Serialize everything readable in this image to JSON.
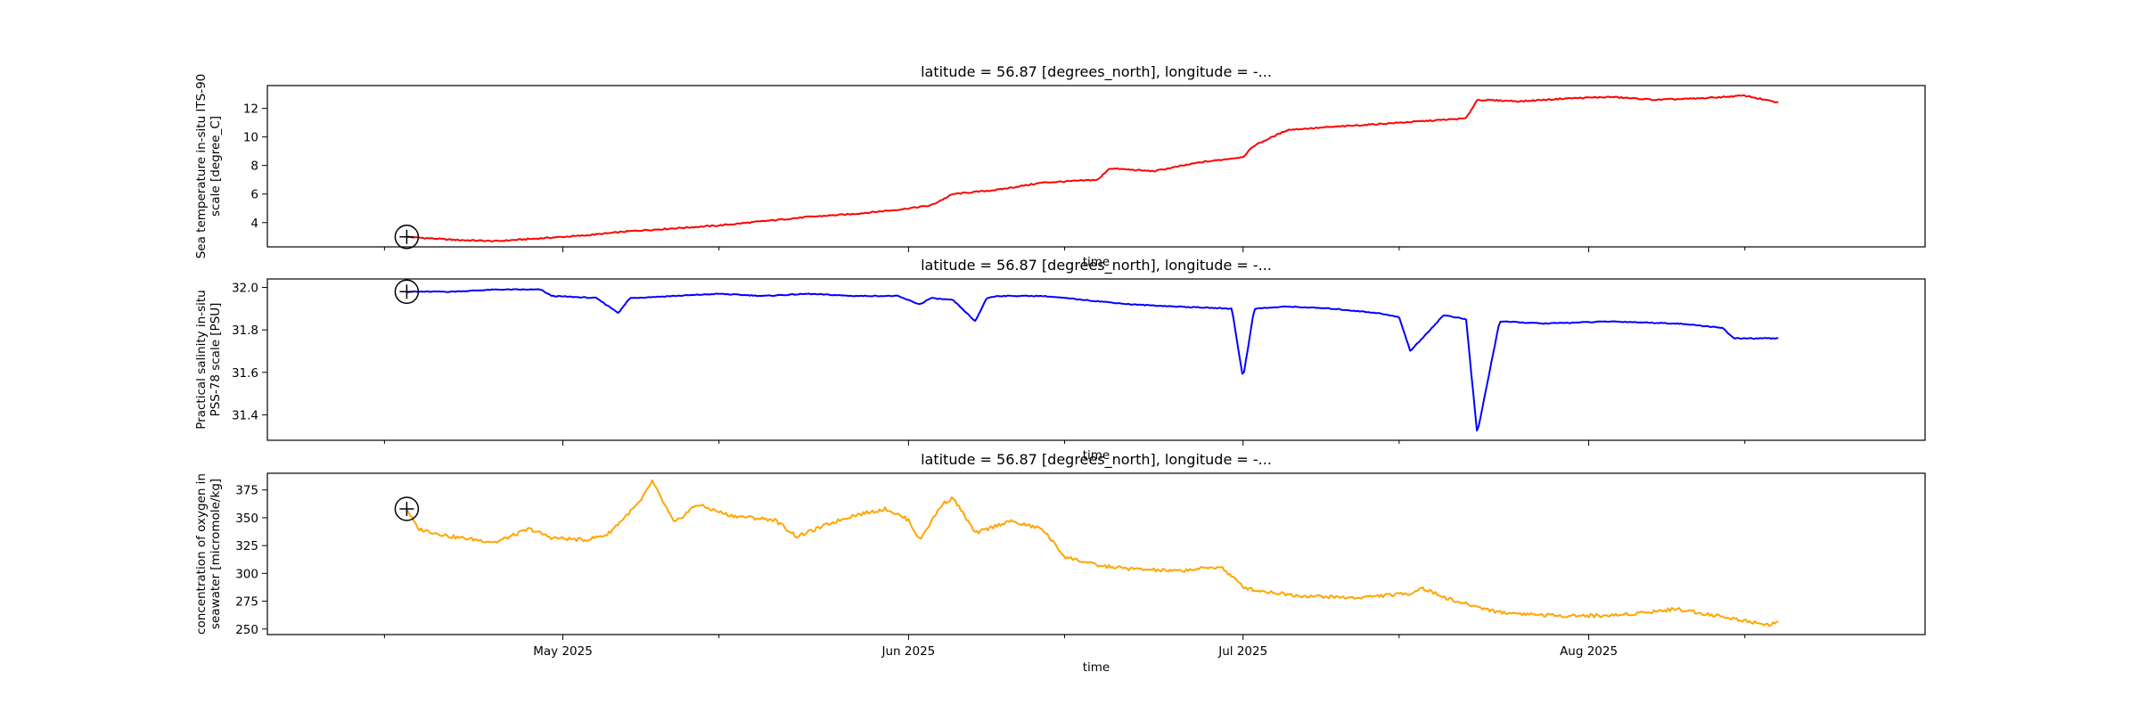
{
  "chart_data": [
    {
      "type": "line",
      "title": "latitude = 56.87 [degrees_north], longitude = -...",
      "ylabel": [
        "Sea temperature in-situ ITS-90",
        "scale [degree_C]"
      ],
      "xlabel": "time",
      "color": "#ff0000",
      "ylim": [
        2.3,
        13.6
      ],
      "yticks": [
        4,
        6,
        8,
        10,
        12
      ],
      "xticklabels": [],
      "series": [
        {
          "x": [
            "2025-04-17",
            "2025-04-21",
            "2025-04-25",
            "2025-04-29",
            "2025-05-03",
            "2025-05-07",
            "2025-05-11",
            "2025-05-15",
            "2025-05-19",
            "2025-05-23",
            "2025-05-27",
            "2025-05-31",
            "2025-06-03",
            "2025-06-05",
            "2025-06-09",
            "2025-06-13",
            "2025-06-18",
            "2025-06-19",
            "2025-06-23",
            "2025-06-27",
            "2025-07-01",
            "2025-07-02",
            "2025-07-05",
            "2025-07-09",
            "2025-07-13",
            "2025-07-17",
            "2025-07-21",
            "2025-07-22",
            "2025-07-26",
            "2025-07-30",
            "2025-08-03",
            "2025-08-07",
            "2025-08-11",
            "2025-08-15",
            "2025-08-18"
          ],
          "y": [
            3.0,
            2.8,
            2.7,
            2.9,
            3.1,
            3.4,
            3.6,
            3.8,
            4.1,
            4.4,
            4.6,
            4.9,
            5.2,
            6.0,
            6.3,
            6.8,
            7.0,
            7.8,
            7.6,
            8.2,
            8.6,
            9.4,
            10.5,
            10.7,
            10.9,
            11.1,
            11.3,
            12.6,
            12.5,
            12.7,
            12.8,
            12.6,
            12.7,
            12.9,
            12.4
          ]
        }
      ]
    },
    {
      "type": "line",
      "title": "latitude = 56.87 [degrees_north], longitude = -...",
      "ylabel": [
        "Practical salinity in-situ",
        "PSS-78 scale [PSU]"
      ],
      "xlabel": "time",
      "color": "#0000ff",
      "ylim": [
        31.28,
        32.04
      ],
      "yticks": [
        31.4,
        31.6,
        31.8,
        32.0
      ],
      "xticklabels": [],
      "series": [
        {
          "x": [
            "2025-04-17",
            "2025-04-21",
            "2025-04-25",
            "2025-04-29",
            "2025-04-30",
            "2025-05-04",
            "2025-05-06",
            "2025-05-07",
            "2025-05-11",
            "2025-05-15",
            "2025-05-19",
            "2025-05-23",
            "2025-05-27",
            "2025-05-31",
            "2025-06-02",
            "2025-06-03",
            "2025-06-05",
            "2025-06-07",
            "2025-06-08",
            "2025-06-09",
            "2025-06-13",
            "2025-06-17",
            "2025-06-21",
            "2025-06-25",
            "2025-06-30",
            "2025-07-01",
            "2025-07-02",
            "2025-07-05",
            "2025-07-09",
            "2025-07-13",
            "2025-07-15",
            "2025-07-16",
            "2025-07-19",
            "2025-07-21",
            "2025-07-22",
            "2025-07-24",
            "2025-07-28",
            "2025-08-03",
            "2025-08-09",
            "2025-08-13",
            "2025-08-14",
            "2025-08-18"
          ],
          "y": [
            31.98,
            31.98,
            31.99,
            31.99,
            31.96,
            31.95,
            31.88,
            31.95,
            31.96,
            31.97,
            31.96,
            31.97,
            31.96,
            31.96,
            31.92,
            31.95,
            31.94,
            31.84,
            31.95,
            31.96,
            31.96,
            31.94,
            31.92,
            31.91,
            31.9,
            31.57,
            31.9,
            31.91,
            31.9,
            31.88,
            31.86,
            31.7,
            31.87,
            31.85,
            31.31,
            31.84,
            31.83,
            31.84,
            31.83,
            31.81,
            31.76,
            31.76
          ]
        }
      ]
    },
    {
      "type": "line",
      "title": "latitude = 56.87 [degrees_north], longitude = -...",
      "ylabel": [
        "concentration of oxygen in",
        "seawater [micromole/kg]"
      ],
      "xlabel": "time",
      "color": "#ffa500",
      "ylim": [
        245,
        390
      ],
      "yticks": [
        250,
        275,
        300,
        325,
        350,
        375
      ],
      "xticklabels": [
        "May 2025",
        "Jun 2025",
        "Jul 2025",
        "Aug 2025"
      ],
      "series": [
        {
          "x": [
            "2025-04-17",
            "2025-04-18",
            "2025-04-21",
            "2025-04-25",
            "2025-04-28",
            "2025-04-30",
            "2025-05-03",
            "2025-05-05",
            "2025-05-08",
            "2025-05-09",
            "2025-05-11",
            "2025-05-13",
            "2025-05-16",
            "2025-05-20",
            "2025-05-22",
            "2025-05-25",
            "2025-05-27",
            "2025-05-30",
            "2025-06-01",
            "2025-06-02",
            "2025-06-04",
            "2025-06-05",
            "2025-06-07",
            "2025-06-10",
            "2025-06-13",
            "2025-06-15",
            "2025-06-18",
            "2025-06-21",
            "2025-06-25",
            "2025-06-29",
            "2025-07-01",
            "2025-07-02",
            "2025-07-06",
            "2025-07-11",
            "2025-07-16",
            "2025-07-17",
            "2025-07-20",
            "2025-07-24",
            "2025-07-29",
            "2025-08-03",
            "2025-08-09",
            "2025-08-13",
            "2025-08-17",
            "2025-08-18"
          ],
          "y": [
            358,
            340,
            333,
            328,
            340,
            332,
            330,
            335,
            365,
            383,
            345,
            362,
            352,
            348,
            333,
            345,
            352,
            358,
            348,
            330,
            362,
            368,
            336,
            347,
            340,
            315,
            307,
            304,
            302,
            306,
            288,
            285,
            280,
            278,
            282,
            287,
            275,
            265,
            262,
            262,
            268,
            261,
            254,
            256
          ]
        }
      ]
    }
  ]
}
